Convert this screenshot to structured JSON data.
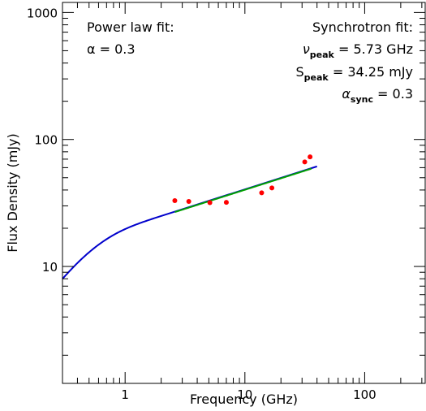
{
  "chart_data": {
    "type": "scatter",
    "xlabel": "Frequency (GHz)",
    "ylabel": "Flux Density (mJy)",
    "x_scale": "log",
    "y_scale": "log",
    "xlim": [
      0.3,
      320
    ],
    "ylim": [
      1.2,
      1200
    ],
    "grid": false,
    "x_ticks": [
      {
        "value": 1,
        "label": "1"
      },
      {
        "value": 10,
        "label": "10"
      },
      {
        "value": 100,
        "label": "100"
      }
    ],
    "y_ticks": [
      {
        "value": 10,
        "label": "10"
      },
      {
        "value": 100,
        "label": "100"
      },
      {
        "value": 1000,
        "label": "1000"
      }
    ],
    "points": [
      {
        "x": 2.6,
        "y": 33.0
      },
      {
        "x": 3.4,
        "y": 32.5
      },
      {
        "x": 5.1,
        "y": 31.8
      },
      {
        "x": 7.0,
        "y": 32.0
      },
      {
        "x": 13.8,
        "y": 38.0
      },
      {
        "x": 16.8,
        "y": 41.5
      },
      {
        "x": 31.6,
        "y": 66.5
      },
      {
        "x": 35.0,
        "y": 73.0
      }
    ],
    "point_color": "#ff0000",
    "series": [
      {
        "color": "#0000cc",
        "curve": {
          "model": "synchrotron",
          "nu_peak": 5.73,
          "s_peak": 34.25,
          "alpha": 0.3,
          "x_range": [
            0.3,
            40
          ]
        }
      },
      {
        "color": "#00a000",
        "curve": {
          "model": "power_law",
          "alpha": 0.3,
          "x_range": [
            2.6,
            36
          ]
        }
      }
    ],
    "annotations": {
      "left_title": "Power law fit:",
      "left_alpha": "α = 0.3",
      "right_title": "Synchrotron fit:",
      "nu_sym": "ν",
      "nu_sub": "peak",
      "nu_val": " = 5.73 GHz",
      "s_sym": "S",
      "s_sub": "peak",
      "s_val": " = 34.25 mJy",
      "a_sym": "α",
      "a_sub": "sync",
      "a_val": " = 0.3"
    }
  }
}
